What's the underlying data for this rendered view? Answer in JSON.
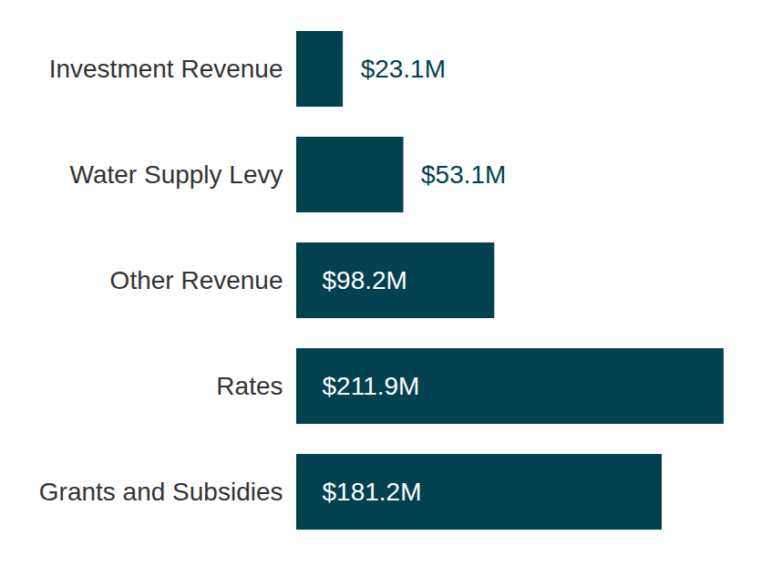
{
  "chart_data": {
    "type": "bar",
    "orientation": "horizontal",
    "categories": [
      "Investment Revenue",
      "Water Supply Levy",
      "Other Revenue",
      "Rates",
      "Grants and Subsidies"
    ],
    "values": [
      23.1,
      53.1,
      98.2,
      211.9,
      181.2
    ],
    "value_labels": [
      "$23.1M",
      "$53.1M",
      "$98.2M",
      "$211.9M",
      "$181.2M"
    ],
    "color": "#02414f",
    "xlim": [
      0,
      211.9
    ],
    "data_labels": true,
    "tick_labels": "y",
    "grid": false
  }
}
